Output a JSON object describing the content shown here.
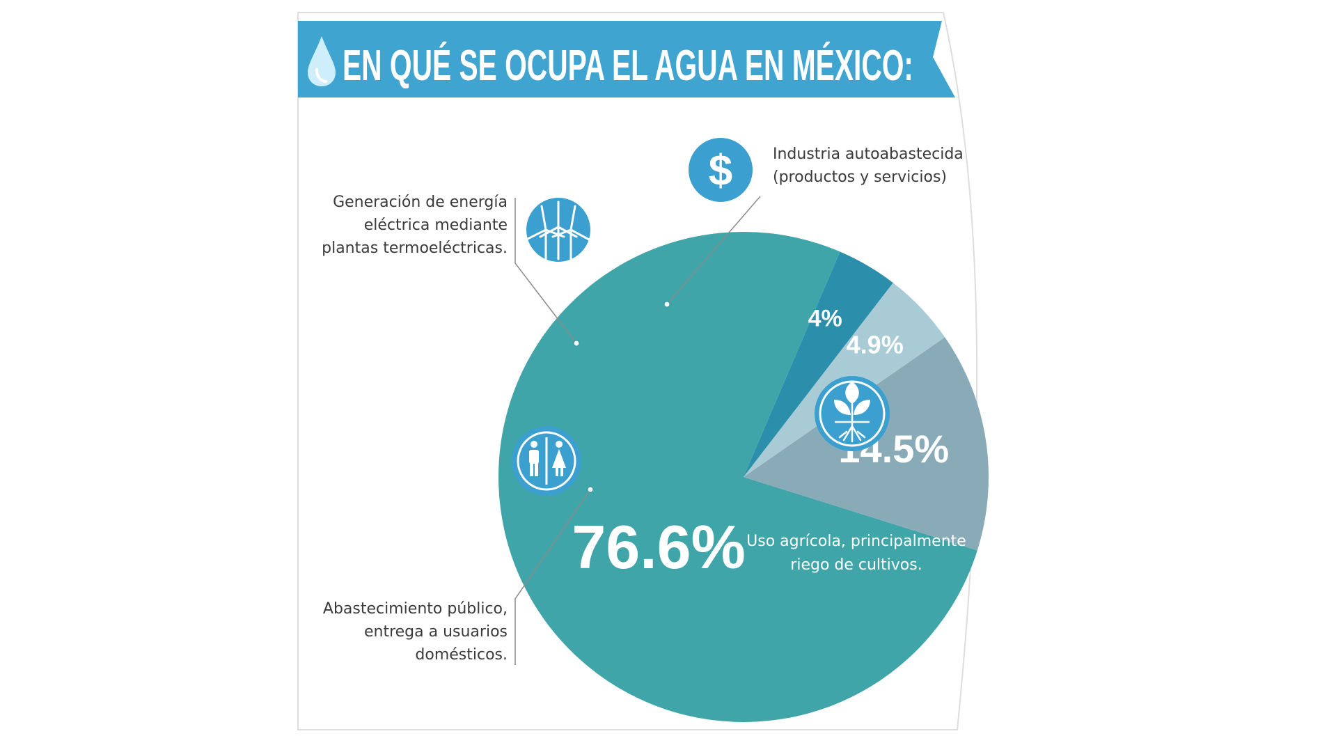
{
  "title": "EN QUÉ SE OCUPA EL AGUA EN MÉXICO:",
  "colors": {
    "banner": "#3fa4cf",
    "frame": "#d8d8d8",
    "agricola": "#3fa5a8",
    "publico": "#89abb8",
    "energia": "#a9cbd6",
    "industria": "#2b8fac",
    "icon": "#3b9fcf"
  },
  "icons": {
    "title": "water-drop-icon",
    "industria": "dollar-icon",
    "energia": "wind-turbine-icon",
    "publico": "restroom-people-icon",
    "agricola": "plant-roots-icon"
  },
  "chart_data": {
    "type": "pie",
    "title": "EN QUÉ SE OCUPA EL AGUA EN MÉXICO:",
    "start_angle_deg": -66.8,
    "direction": "counterclockwise",
    "slices": [
      {
        "key": "agricola",
        "label_text": "76.6%",
        "value": 76.6,
        "description": [
          "Uso agrícola, principalmente",
          "riego de cultivos."
        ]
      },
      {
        "key": "publico",
        "label_text": "14.5%",
        "value": 14.5,
        "description": [
          "Abastecimiento público,",
          "entrega a usuarios",
          "domésticos."
        ]
      },
      {
        "key": "energia",
        "label_text": "4.9%",
        "value": 4.9,
        "description": [
          "Generación de energía",
          "eléctrica mediante",
          "plantas termoeléctricas."
        ]
      },
      {
        "key": "industria",
        "label_text": "4%",
        "value": 4,
        "description": [
          "Industria autoabastecida",
          "(productos y servicios)"
        ]
      }
    ]
  }
}
